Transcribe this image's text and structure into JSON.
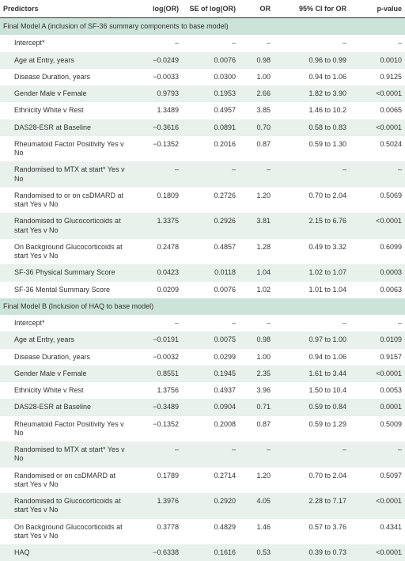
{
  "headers": [
    "Predictors",
    "log(OR)",
    "SE of log(OR)",
    "OR",
    "95% CI for OR",
    "p-value"
  ],
  "rows": [
    {
      "cls": "section",
      "cells": [
        "Final Model A (inclusion of SF-36 summary components to base model)",
        "",
        "",
        "",
        "",
        ""
      ],
      "span": true
    },
    {
      "cls": "plain",
      "indent": true,
      "cells": [
        "Intercept*",
        "–",
        "–",
        "–",
        "–",
        "–"
      ]
    },
    {
      "cls": "tint",
      "indent": true,
      "cells": [
        "Age at Entry, years",
        "−0.0249",
        "0.0076",
        "0.98",
        "0.96 to 0.99",
        "0.0010"
      ]
    },
    {
      "cls": "plain",
      "indent": true,
      "cells": [
        "Disease Duration, years",
        "−0.0033",
        "0.0300",
        "1.00",
        "0.94 to 1.06",
        "0.9125"
      ]
    },
    {
      "cls": "tint",
      "indent": true,
      "cells": [
        "Gender Male v Female",
        "0.9793",
        "0.1953",
        "2.66",
        "1.82 to 3.90",
        "<0.0001"
      ]
    },
    {
      "cls": "plain",
      "indent": true,
      "cells": [
        "Ethnicity White v Rest",
        "1.3489",
        "0.4957",
        "3.85",
        "1.46 to 10.2",
        "0.0065"
      ]
    },
    {
      "cls": "tint",
      "indent": true,
      "cells": [
        "DAS28-ESR at Baseline",
        "−0.3616",
        "0.0891",
        "0.70",
        "0.58 to 0.83",
        "<0.0001"
      ]
    },
    {
      "cls": "plain",
      "indent": true,
      "cells": [
        "Rheumatoid Factor Positivity Yes v No",
        "−0.1352",
        "0.2016",
        "0.87",
        "0.59 to 1.30",
        "0.5024"
      ]
    },
    {
      "cls": "tint",
      "indent": true,
      "cells": [
        "Randomised to MTX at start* Yes v No",
        "–",
        "–",
        "–",
        "–",
        "–"
      ]
    },
    {
      "cls": "plain",
      "indent": true,
      "cells": [
        "Randomised to or on csDMARD at start Yes v No",
        "0.1809",
        "0.2726",
        "1.20",
        "0.70 to 2.04",
        "0.5069"
      ]
    },
    {
      "cls": "tint",
      "indent": true,
      "cells": [
        "Randomised to Glucocorticoids at start Yes v No",
        "1.3375",
        "0.2926",
        "3.81",
        "2.15 to 6.76",
        "<0.0001"
      ]
    },
    {
      "cls": "plain",
      "indent": true,
      "cells": [
        "On Background Glucocorticoids at start Yes v No",
        "0.2478",
        "0.4857",
        "1.28",
        "0.49 to 3.32",
        "0.6099"
      ]
    },
    {
      "cls": "tint",
      "indent": true,
      "cells": [
        "SF-36 Physical Summary Score",
        "0.0423",
        "0.0118",
        "1.04",
        "1.02 to 1.07",
        "0.0003"
      ]
    },
    {
      "cls": "plain",
      "indent": true,
      "cells": [
        "SF-36 Mental Summary Score",
        "0.0209",
        "0.0076",
        "1.02",
        "1.01 to 1.04",
        "0.0063"
      ]
    },
    {
      "cls": "section",
      "cells": [
        "Final Model B (Inclusion of HAQ to base model)",
        "",
        "",
        "",
        "",
        ""
      ],
      "span": true
    },
    {
      "cls": "plain",
      "indent": true,
      "cells": [
        "Intercept*",
        "–",
        "–",
        "–",
        "–",
        "–"
      ]
    },
    {
      "cls": "tint",
      "indent": true,
      "cells": [
        "Age at Entry, years",
        "−0.0191",
        "0.0075",
        "0.98",
        "0.97 to 1.00",
        "0.0109"
      ]
    },
    {
      "cls": "plain",
      "indent": true,
      "cells": [
        "Disease Duration, years",
        "−0.0032",
        "0.0299",
        "1.00",
        "0.94 to 1.06",
        "0.9157"
      ]
    },
    {
      "cls": "tint",
      "indent": true,
      "cells": [
        "Gender Male v Female",
        "0.8551",
        "0.1945",
        "2.35",
        "1.61 to 3.44",
        "<0.0001"
      ]
    },
    {
      "cls": "plain",
      "indent": true,
      "cells": [
        "Ethnicity White v Rest",
        "1.3756",
        "0.4937",
        "3.96",
        "1.50 to 10.4",
        "0.0053"
      ]
    },
    {
      "cls": "tint",
      "indent": true,
      "cells": [
        "DAS28-ESR at Baseline",
        "−0.3489",
        "0.0904",
        "0.71",
        "0.59 to 0.84",
        "0.0001"
      ]
    },
    {
      "cls": "plain",
      "indent": true,
      "cells": [
        "Rheumatoid Factor Positivity Yes v No",
        "−0.1352",
        "0.2008",
        "0.87",
        "0.59 to 1.29",
        "0.5009"
      ]
    },
    {
      "cls": "tint",
      "indent": true,
      "cells": [
        "Randomised to MTX at start* Yes v No",
        "–",
        "–",
        "–",
        "–",
        "–"
      ]
    },
    {
      "cls": "plain",
      "indent": true,
      "cells": [
        "Randomised or on csDMARD at start Yes v No",
        "0.1789",
        "0.2714",
        "1.20",
        "0.70 to 2.04",
        "0.5097"
      ]
    },
    {
      "cls": "tint",
      "indent": true,
      "cells": [
        "Randomised to Glucocorticoids at start Yes v No",
        "1.3976",
        "0.2920",
        "4.05",
        "2.28 to 7.17",
        "<0.0001"
      ]
    },
    {
      "cls": "plain",
      "indent": true,
      "cells": [
        "On Background Glucocorticoids at start Yes v No",
        "0.3778",
        "0.4829",
        "1.46",
        "0.57 to 3.76",
        "0.4341"
      ]
    },
    {
      "cls": "tint",
      "indent": true,
      "cells": [
        "HAQ",
        "−0.6338",
        "0.1616",
        "0.53",
        "0.39 to 0.73",
        "<0.0001"
      ]
    }
  ]
}
